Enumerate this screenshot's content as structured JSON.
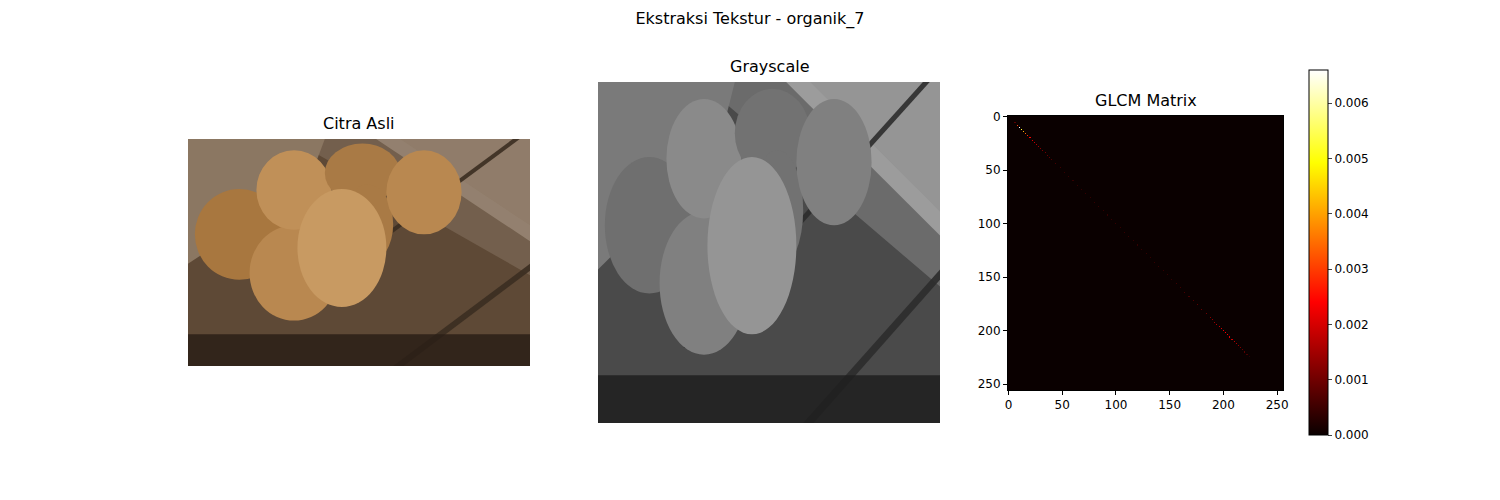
{
  "title": "Ekstraksi Tekstur - organik_7",
  "chart_data": [
    {
      "type": "image",
      "title": "Citra Asli",
      "color": "rgb",
      "tick_labels": false
    },
    {
      "type": "image",
      "title": "Grayscale",
      "color": "gray",
      "tick_labels": false
    },
    {
      "type": "heatmap",
      "title": "GLCM Matrix",
      "color": "hot",
      "xlim": [
        -0.5,
        255.5
      ],
      "ylim": [
        255.5,
        -0.5
      ],
      "xticks": [
        0,
        50,
        100,
        150,
        200,
        250
      ],
      "yticks": [
        0,
        50,
        100,
        150,
        200,
        250
      ],
      "colorbar_range": [
        0,
        0.0066
      ],
      "colorbar_ticks": [
        {
          "value": 0,
          "label": "0.000"
        },
        0.001,
        0.002,
        0.003,
        0.004,
        0.005,
        0.006
      ],
      "cells": [
        [
          6,
          6,
          0.0008
        ],
        [
          8,
          8,
          0.003
        ],
        [
          10,
          10,
          0.0066
        ],
        [
          12,
          12,
          0.0052
        ],
        [
          14,
          14,
          0.0042
        ],
        [
          16,
          16,
          0.0034
        ],
        [
          18,
          18,
          0.0028
        ],
        [
          20,
          20,
          0.0024
        ],
        [
          22,
          22,
          0.002
        ],
        [
          24,
          24,
          0.0018
        ],
        [
          26,
          26,
          0.0016
        ],
        [
          28,
          28,
          0.0014
        ],
        [
          30,
          30,
          0.0012
        ],
        [
          32,
          32,
          0.0011
        ],
        [
          34,
          34,
          0.001
        ],
        [
          36,
          36,
          0.0009
        ],
        [
          38,
          38,
          0.0008
        ],
        [
          40,
          40,
          0.0007
        ],
        [
          44,
          44,
          0.0006
        ],
        [
          48,
          48,
          0.0005
        ],
        [
          52,
          52,
          0.0004
        ],
        [
          56,
          56,
          0.0004
        ],
        [
          60,
          60,
          0.0004
        ],
        [
          64,
          64,
          0.0004
        ],
        [
          68,
          68,
          0.0004
        ],
        [
          72,
          72,
          0.0004
        ],
        [
          76,
          76,
          0.0004
        ],
        [
          80,
          80,
          0.0004
        ],
        [
          84,
          84,
          0.0004
        ],
        [
          88,
          88,
          0.0004
        ],
        [
          92,
          92,
          0.0004
        ],
        [
          96,
          96,
          0.0004
        ],
        [
          100,
          100,
          0.0004
        ],
        [
          104,
          104,
          0.0004
        ],
        [
          108,
          108,
          0.0004
        ],
        [
          112,
          112,
          0.0004
        ],
        [
          116,
          116,
          0.0004
        ],
        [
          120,
          120,
          0.0004
        ],
        [
          124,
          124,
          0.0004
        ],
        [
          128,
          128,
          0.0004
        ],
        [
          132,
          132,
          0.0004
        ],
        [
          136,
          136,
          0.0004
        ],
        [
          140,
          140,
          0.0004
        ],
        [
          144,
          144,
          0.0004
        ],
        [
          148,
          148,
          0.0004
        ],
        [
          152,
          152,
          0.0004
        ],
        [
          156,
          156,
          0.0005
        ],
        [
          160,
          160,
          0.0005
        ],
        [
          164,
          164,
          0.0006
        ],
        [
          168,
          168,
          0.0006
        ],
        [
          172,
          172,
          0.0007
        ],
        [
          176,
          176,
          0.0008
        ],
        [
          180,
          180,
          0.0009
        ],
        [
          184,
          184,
          0.001
        ],
        [
          188,
          188,
          0.0012
        ],
        [
          190,
          190,
          0.0013
        ],
        [
          192,
          192,
          0.0014
        ],
        [
          194,
          194,
          0.0016
        ],
        [
          196,
          196,
          0.0018
        ],
        [
          198,
          198,
          0.002
        ],
        [
          200,
          200,
          0.0022
        ],
        [
          202,
          202,
          0.0024
        ],
        [
          204,
          204,
          0.0023
        ],
        [
          206,
          206,
          0.0021
        ],
        [
          208,
          208,
          0.0019
        ],
        [
          210,
          210,
          0.0017
        ],
        [
          212,
          212,
          0.0015
        ],
        [
          214,
          214,
          0.0013
        ],
        [
          216,
          216,
          0.0011
        ],
        [
          218,
          218,
          0.0009
        ],
        [
          220,
          220,
          0.0008
        ],
        [
          222,
          222,
          0.0006
        ],
        [
          224,
          224,
          0.0003
        ]
      ]
    }
  ]
}
